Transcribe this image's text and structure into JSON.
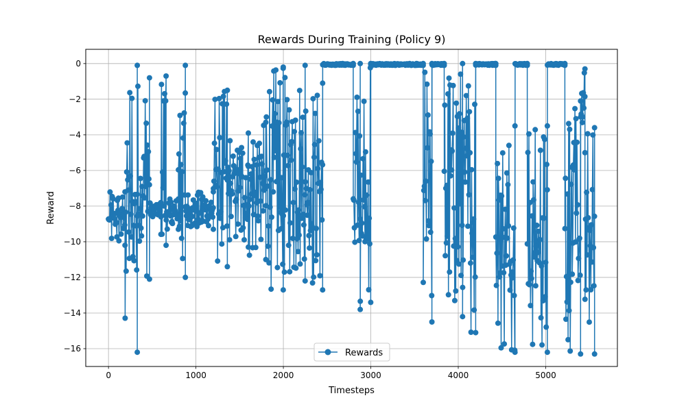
{
  "chart_data": {
    "type": "line",
    "title": "Rewards During Training (Policy 9)",
    "xlabel": "Timesteps",
    "ylabel": "Reward",
    "xlim": [
      -260,
      5820
    ],
    "ylim": [
      -17,
      0.8
    ],
    "xticks": [
      0,
      1000,
      2000,
      3000,
      4000,
      5000
    ],
    "yticks": [
      0,
      -2,
      -4,
      -6,
      -8,
      -10,
      -12,
      -14,
      -16
    ],
    "ytick_labels": [
      "0",
      "−2",
      "−4",
      "−6",
      "−8",
      "−10",
      "−12",
      "−14",
      "−16"
    ],
    "grid": true,
    "legend_position": "bottom-center",
    "color": "#1f77b4",
    "series": [
      {
        "name": "Rewards",
        "marker": "circle",
        "segments": [
          {
            "x0": 0,
            "x1": 190,
            "lo": -10.2,
            "hi": -7.2
          },
          {
            "x0": 190,
            "x1": 330,
            "lo": -16.2,
            "hi": -0.1
          },
          {
            "x0": 330,
            "x1": 470,
            "lo": -12.1,
            "hi": -0.8
          },
          {
            "x0": 470,
            "x1": 600,
            "lo": -8.6,
            "hi": -7.8
          },
          {
            "x0": 600,
            "x1": 660,
            "lo": -10.2,
            "hi": -0.7
          },
          {
            "x0": 660,
            "x1": 800,
            "lo": -9.3,
            "hi": -7.6
          },
          {
            "x0": 800,
            "x1": 880,
            "lo": -12.0,
            "hi": -0.1
          },
          {
            "x0": 880,
            "x1": 1200,
            "lo": -9.3,
            "hi": -7.2
          },
          {
            "x0": 1200,
            "x1": 1360,
            "lo": -11.4,
            "hi": -1.5
          },
          {
            "x0": 1360,
            "x1": 1600,
            "lo": -10.3,
            "hi": -3.9
          },
          {
            "x0": 1600,
            "x1": 1800,
            "lo": -11.0,
            "hi": -3.3
          },
          {
            "x0": 1800,
            "x1": 2000,
            "lo": -12.7,
            "hi": -0.2
          },
          {
            "x0": 2000,
            "x1": 2250,
            "lo": -12.2,
            "hi": -0.1
          },
          {
            "x0": 2250,
            "x1": 2450,
            "lo": -12.7,
            "hi": -1.1
          },
          {
            "x0": 2450,
            "x1": 2800,
            "lo": -0.1,
            "hi": 0.0
          },
          {
            "x0": 2800,
            "x1": 2880,
            "lo": -13.8,
            "hi": 0.0
          },
          {
            "x0": 2880,
            "x1": 3000,
            "lo": -13.4,
            "hi": 0.0
          },
          {
            "x0": 3000,
            "x1": 3600,
            "lo": -0.1,
            "hi": 0.0
          },
          {
            "x0": 3600,
            "x1": 3700,
            "lo": -14.5,
            "hi": 0.0
          },
          {
            "x0": 3700,
            "x1": 3840,
            "lo": -0.1,
            "hi": 0.0
          },
          {
            "x0": 3840,
            "x1": 4050,
            "lo": -14.2,
            "hi": 0.0
          },
          {
            "x0": 4050,
            "x1": 4200,
            "lo": -15.1,
            "hi": 0.0
          },
          {
            "x0": 4200,
            "x1": 4430,
            "lo": -0.1,
            "hi": 0.0
          },
          {
            "x0": 4430,
            "x1": 4650,
            "lo": -16.2,
            "hi": -3.5
          },
          {
            "x0": 4650,
            "x1": 4790,
            "lo": -0.1,
            "hi": 0.0
          },
          {
            "x0": 4790,
            "x1": 5020,
            "lo": -16.2,
            "hi": -3.5
          },
          {
            "x0": 5020,
            "x1": 5220,
            "lo": -0.1,
            "hi": 0.0
          },
          {
            "x0": 5220,
            "x1": 5400,
            "lo": -16.3,
            "hi": -2.1
          },
          {
            "x0": 5400,
            "x1": 5450,
            "lo": -5.0,
            "hi": -0.3
          },
          {
            "x0": 5450,
            "x1": 5560,
            "lo": -16.3,
            "hi": -3.6
          }
        ]
      }
    ]
  }
}
